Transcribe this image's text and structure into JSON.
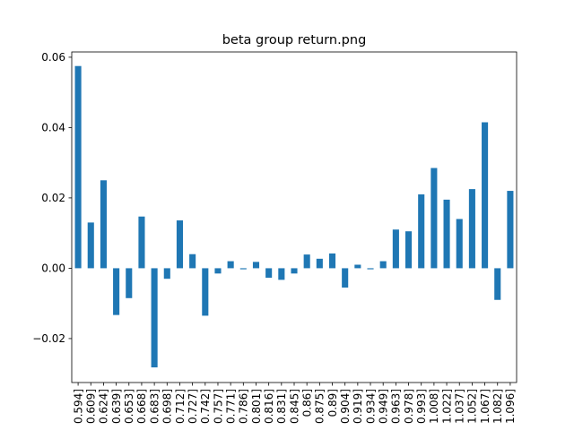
{
  "chart_data": {
    "type": "bar",
    "title": "beta group return.png",
    "xlabel": "",
    "ylabel": "",
    "grid": false,
    "legend": false,
    "color": "#1f77b4",
    "ylim": [
      -0.0325,
      0.0615
    ],
    "yticks": [
      -0.02,
      0.0,
      0.02,
      0.04,
      0.06
    ],
    "ytick_labels": [
      "−0.02",
      "0.00",
      "0.02",
      "0.04",
      "0.06"
    ],
    "categories": [
      "0.594]",
      "0.609]",
      "0.624]",
      "0.639]",
      "0.653]",
      "0.668]",
      "0.683]",
      "0.698]",
      "0.712]",
      "0.727]",
      "0.742]",
      "0.757]",
      "0.771]",
      "0.786]",
      "0.801]",
      "0.816]",
      "0.831]",
      "0.845]",
      "0.86]",
      "0.875]",
      "0.89]",
      "0.904]",
      "0.919]",
      "0.934]",
      "0.949]",
      "0.963]",
      "0.978]",
      "0.993]",
      "1.008]",
      "1.022]",
      "1.037]",
      "1.052]",
      "1.067]",
      "1.082]",
      "1.096]"
    ],
    "values": [
      0.0575,
      0.013,
      0.025,
      -0.0133,
      -0.0085,
      0.0147,
      -0.0282,
      -0.003,
      0.0136,
      0.004,
      -0.0135,
      -0.0015,
      0.002,
      -0.0003,
      0.0018,
      -0.0027,
      -0.0033,
      -0.0015,
      0.0039,
      0.0027,
      0.0042,
      -0.0055,
      0.001,
      -0.0003,
      0.002,
      0.011,
      0.0105,
      0.021,
      0.0285,
      0.0195,
      0.014,
      0.0225,
      0.0415,
      -0.009,
      0.022
    ]
  }
}
